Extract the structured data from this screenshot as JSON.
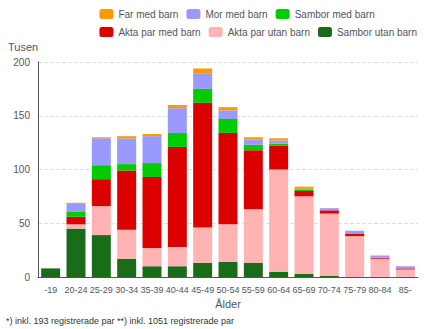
{
  "chart_data": {
    "type": "bar",
    "stacked": true,
    "xlabel": "Ålder",
    "ylabel": "Tusen",
    "annotations": [
      "*) inkl. 193 registrerade par **) inkl. 1051 registrerade par"
    ],
    "categories": [
      "-19",
      "20-24",
      "25-29",
      "30-34",
      "35-39",
      "40-44",
      "45-49",
      "50-54",
      "55-59",
      "60-64",
      "65-69",
      "70-74",
      "75-79",
      "80-84",
      "85-"
    ],
    "series": [
      {
        "name": "Sambor utan barn",
        "color": "#1a6b1a",
        "values": [
          8,
          45,
          39,
          17,
          10,
          10,
          13,
          14,
          13,
          5,
          3,
          1,
          0,
          0,
          0
        ]
      },
      {
        "name": "Akta par utan barn",
        "color": "#ffb3b3",
        "values": [
          0,
          4,
          27,
          27,
          17,
          18,
          33,
          35,
          50,
          95,
          72,
          58,
          38,
          17,
          7
        ]
      },
      {
        "name": "Akta par med barn",
        "color": "#dd0000",
        "values": [
          0,
          7,
          25,
          55,
          66,
          93,
          116,
          85,
          55,
          22,
          5,
          3,
          2,
          1,
          1
        ]
      },
      {
        "name": "Sambor med barn",
        "color": "#00cc00",
        "values": [
          0,
          5,
          13,
          6,
          13,
          13,
          13,
          13,
          5,
          2,
          1,
          0,
          0,
          0,
          0
        ]
      },
      {
        "name": "Mor med barn",
        "color": "#9999ff",
        "values": [
          0,
          7,
          25,
          24,
          25,
          23,
          14,
          8,
          5,
          3,
          1,
          2,
          3,
          2,
          2
        ]
      },
      {
        "name": "Far med barn",
        "color": "#ff9900",
        "values": [
          0,
          1,
          1,
          2,
          2,
          3,
          5,
          3,
          2,
          2,
          2,
          0,
          0,
          0,
          0
        ]
      }
    ],
    "ylim": [
      0,
      200
    ],
    "yticks": [
      0,
      50,
      100,
      150,
      200
    ],
    "grid": true,
    "legend": "top"
  }
}
